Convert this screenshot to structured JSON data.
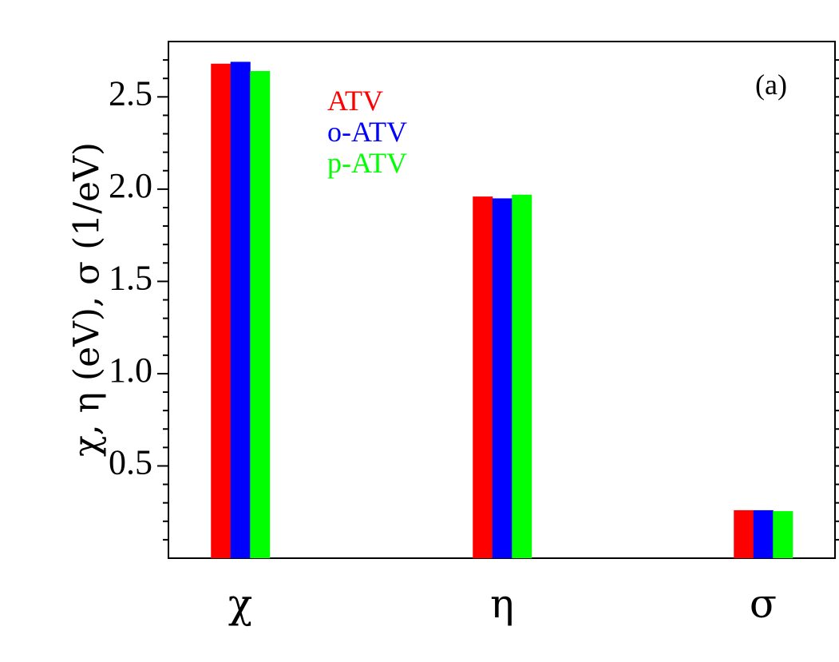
{
  "chart_data": {
    "type": "bar",
    "categories": [
      "χ",
      "η",
      "σ"
    ],
    "series": [
      {
        "name": "ATV",
        "color": "#ff0000",
        "values": [
          2.68,
          1.96,
          0.26
        ]
      },
      {
        "name": "o-ATV",
        "color": "#0000ff",
        "values": [
          2.69,
          1.95,
          0.26
        ]
      },
      {
        "name": "p-ATV",
        "color": "#00ff00",
        "values": [
          2.64,
          1.97,
          0.255
        ]
      }
    ],
    "ylabel": "χ, η (eV), σ (1/eV)",
    "yticks": [
      "0.5",
      "1.0",
      "1.5",
      "2.0",
      "2.5"
    ],
    "ylim": [
      0.0,
      2.8
    ],
    "annotation": "(a)",
    "legend_position": "top-left inside plot",
    "grid": false
  }
}
